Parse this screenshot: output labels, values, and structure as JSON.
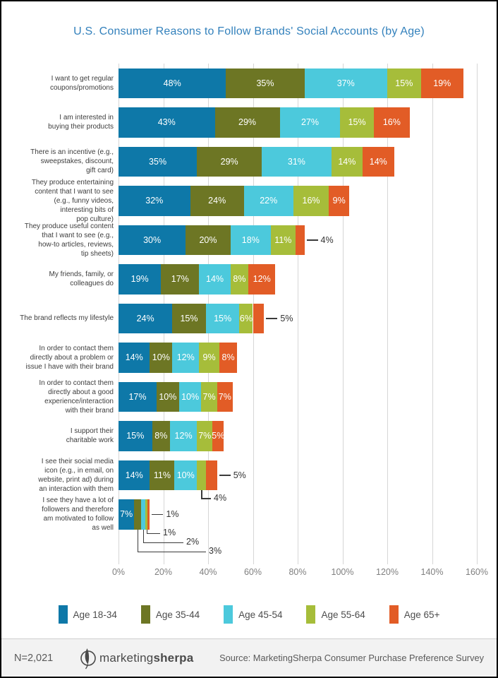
{
  "title": "U.S. Consumer Reasons to Follow Brands' Social Accounts (by Age)",
  "chart_data": {
    "type": "bar",
    "orientation": "horizontal",
    "stacked": true,
    "title": "U.S. Consumer Reasons to Follow Brands' Social Accounts (by Age)",
    "value_suffix": "%",
    "categories": [
      "I want to get regular\ncoupons/promotions",
      "I am interested in\nbuying their products",
      "There is an incentive (e.g.,\nsweepstakes, discount,\ngift card)",
      "They produce entertaining\ncontent that I want to see\n(e.g., funny videos,\ninteresting bits of\npop culture)",
      "They produce useful content\nthat I want to see (e.g.,\nhow-to articles, reviews,\ntip sheets)",
      "My friends, family, or\ncolleagues do",
      "The brand reflects my lifestyle",
      "In order to contact them\ndirectly about a problem or\nissue I have with their brand",
      "In order to contact them\ndirectly about a good\nexperience/interaction\nwith their brand",
      "I support their\ncharitable work",
      "I see their social media\nicon (e.g., in email, on\nwebsite, print ad) during\nan interaction with them",
      "I see they have a lot of\nfollowers and therefore\nam motivated to follow\nas well"
    ],
    "series": [
      {
        "name": "Age 18-34",
        "color": "#0E78A8",
        "values": [
          48,
          43,
          35,
          32,
          30,
          19,
          24,
          14,
          17,
          15,
          14,
          7
        ]
      },
      {
        "name": "Age 35-44",
        "color": "#6D7624",
        "values": [
          35,
          29,
          29,
          24,
          20,
          17,
          15,
          10,
          10,
          8,
          11,
          3
        ]
      },
      {
        "name": "Age 45-54",
        "color": "#4CC9DC",
        "values": [
          37,
          27,
          31,
          22,
          18,
          14,
          15,
          12,
          10,
          12,
          10,
          2
        ]
      },
      {
        "name": "Age 55-64",
        "color": "#A6BD3A",
        "values": [
          15,
          15,
          14,
          16,
          11,
          8,
          6,
          9,
          7,
          7,
          4,
          1
        ]
      },
      {
        "name": "Age 65+",
        "color": "#E25C26",
        "values": [
          19,
          16,
          14,
          9,
          4,
          12,
          5,
          8,
          7,
          5,
          5,
          1
        ]
      }
    ],
    "x_axis": {
      "min": 0,
      "max": 160,
      "tick_labels": [
        "0%",
        "20%",
        "40%",
        "60%",
        "80%",
        "100%",
        "120%",
        "140%",
        "160%"
      ],
      "gridlines": true
    },
    "legend_position": "bottom",
    "outside_labels": [
      {
        "category_index": 4,
        "series_index": 4,
        "placement": "right"
      },
      {
        "category_index": 6,
        "series_index": 4,
        "placement": "right"
      },
      {
        "category_index": 10,
        "series_index": 3,
        "placement": "below"
      },
      {
        "category_index": 10,
        "series_index": 4,
        "placement": "right"
      },
      {
        "category_index": 11,
        "series_index": 1,
        "placement": "below"
      },
      {
        "category_index": 11,
        "series_index": 2,
        "placement": "below"
      },
      {
        "category_index": 11,
        "series_index": 3,
        "placement": "below"
      },
      {
        "category_index": 11,
        "series_index": 4,
        "placement": "right"
      }
    ]
  },
  "footer": {
    "sample_size": "N=2,021",
    "logo": {
      "regular": "marketing",
      "bold": "sherpa"
    },
    "source": "Source: MarketingSherpa Consumer Purchase Preference Survey"
  }
}
